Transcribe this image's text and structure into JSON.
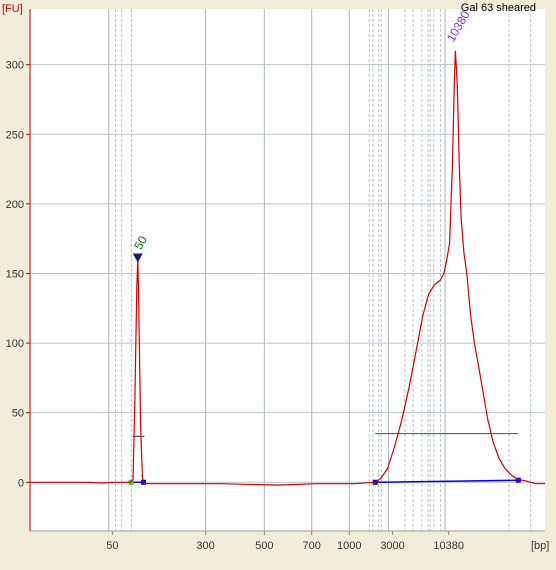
{
  "chart_data": {
    "type": "line",
    "title": "Gal 63 sheared",
    "xlabel": "[bp]",
    "ylabel": "[FU]",
    "ylim": [
      -35,
      340
    ],
    "yticks": [
      0,
      50,
      100,
      150,
      200,
      250,
      300
    ],
    "xticks": [
      "50",
      "300",
      "500",
      "700",
      "1000",
      "3000",
      "10380"
    ],
    "grid": true,
    "colors": {
      "background": "#f2edd9",
      "plot": "#ffffff",
      "trace": "#d00000",
      "axis": "#cc0000",
      "baseline": "#0000ee",
      "region": "#2e7d4f",
      "marker_label_left": "#007700",
      "marker_label_right": "#8a2be2"
    },
    "peaks": [
      {
        "label": "50",
        "value": 160
      },
      {
        "label": "10380",
        "value": 310
      }
    ],
    "trace": [
      [
        0,
        0
      ],
      [
        20,
        0
      ],
      [
        40,
        0
      ],
      [
        60,
        0
      ],
      [
        75,
        -0.5
      ],
      [
        90,
        0
      ],
      [
        105,
        0
      ],
      [
        108,
        2
      ],
      [
        110,
        60
      ],
      [
        112,
        140
      ],
      [
        113,
        160
      ],
      [
        114,
        130
      ],
      [
        116,
        40
      ],
      [
        118,
        3
      ],
      [
        120,
        -1
      ],
      [
        150,
        -1
      ],
      [
        200,
        -1
      ],
      [
        260,
        -2
      ],
      [
        300,
        -1
      ],
      [
        340,
        -1
      ],
      [
        362,
        0
      ],
      [
        368,
        3
      ],
      [
        375,
        10
      ],
      [
        382,
        25
      ],
      [
        390,
        45
      ],
      [
        398,
        70
      ],
      [
        405,
        95
      ],
      [
        412,
        120
      ],
      [
        418,
        135
      ],
      [
        424,
        142
      ],
      [
        430,
        145
      ],
      [
        434,
        150
      ],
      [
        437,
        160
      ],
      [
        440,
        172
      ],
      [
        443,
        230
      ],
      [
        445,
        290
      ],
      [
        446,
        310
      ],
      [
        448,
        285
      ],
      [
        450,
        230
      ],
      [
        452,
        190
      ],
      [
        455,
        165
      ],
      [
        458,
        150
      ],
      [
        462,
        120
      ],
      [
        466,
        100
      ],
      [
        470,
        85
      ],
      [
        475,
        65
      ],
      [
        480,
        45
      ],
      [
        486,
        28
      ],
      [
        492,
        17
      ],
      [
        498,
        10
      ],
      [
        505,
        5
      ],
      [
        512,
        2
      ],
      [
        520,
        1
      ],
      [
        530,
        -1
      ],
      [
        540,
        -1
      ]
    ]
  }
}
